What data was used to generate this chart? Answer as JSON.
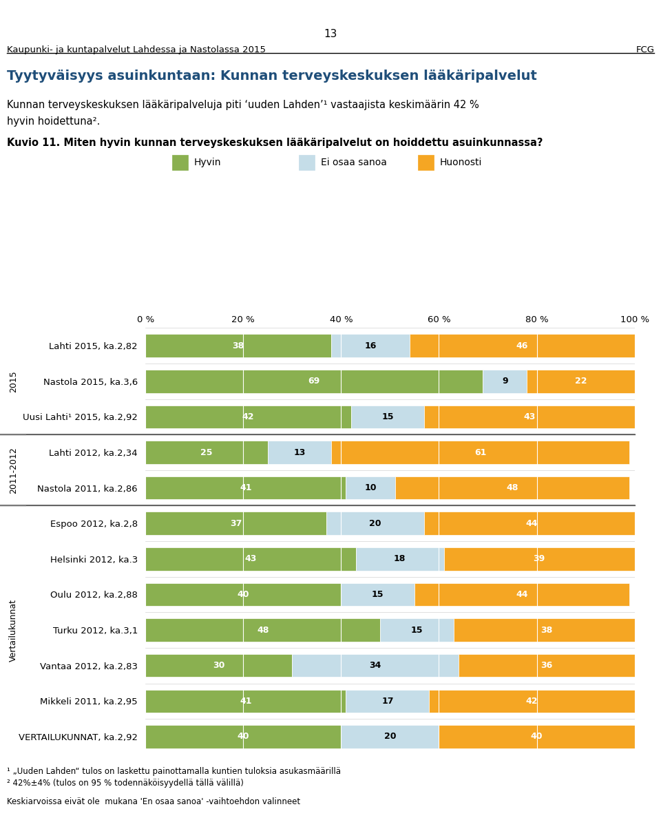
{
  "page_number": "13",
  "header_left": "Kaupunki- ja kuntapalvelut Lahdessa ja Nastolassa 2015",
  "header_right": "FCG",
  "title": "Tyytyväisyys asuinkuntaan: Kunnan terveyskeskuksen lääkäripalvelut",
  "subtitle_line1": "Kunnan terveyskeskuksen lääkäripalveluja piti ‘uuden Lahden’¹ vastaajista keskimäärin 42 %",
  "subtitle_line2": "hyvin hoidettuna².",
  "kuvio_label": "Kuvio 11. Miten hyvin kunnan terveyskeskuksen lääkäripalvelut on hoiddettu asuinkunnassa?",
  "legend_items": [
    "Hyvin",
    "Ei osaa sanoa",
    "Huonosti"
  ],
  "legend_colors": [
    "#8ab050",
    "#c5dde8",
    "#f5a623"
  ],
  "bar_color_hyvin": "#8ab050",
  "bar_color_ei_osaa": "#c5dde8",
  "bar_color_huonosti": "#f5a623",
  "categories": [
    "Lahti 2015, ka.2,82",
    "Nastola 2015, ka.3,6",
    "Uusi Lahti¹ 2015, ka.2,92",
    "Lahti 2012, ka.2,34",
    "Nastola 2011, ka.2,86",
    "Espoo 2012, ka.2,8",
    "Helsinki 2012, ka.3",
    "Oulu 2012, ka.2,88",
    "Turku 2012, ka.3,1",
    "Vantaa 2012, ka.2,83",
    "Mikkeli 2011, ka.2,95",
    "VERTAILUKUNNAT, ka.2,92"
  ],
  "hyvin": [
    38,
    69,
    42,
    25,
    41,
    37,
    43,
    40,
    48,
    30,
    41,
    40
  ],
  "ei_osaa": [
    16,
    9,
    15,
    13,
    10,
    20,
    18,
    15,
    15,
    34,
    17,
    20
  ],
  "huonosti": [
    46,
    22,
    43,
    61,
    48,
    44,
    39,
    44,
    38,
    36,
    42,
    40
  ],
  "group_labels": [
    "2015",
    "2011-2012",
    "Vertailukunnat"
  ],
  "group_ranges": [
    [
      0,
      2
    ],
    [
      3,
      4
    ],
    [
      5,
      11
    ]
  ],
  "footnote1": "¹ „Uuden Lahden“ tulos on laskettu painottamalla kuntien tuloksia asukasmäärillä",
  "footnote2": "² 42%±4% (tulos on 95 % todennäköisyydellä tällä välillä)",
  "footnote3": "Keskiarvoissa eivät ole  mukana 'En osaa sanoa' -vaihtoehdon valinneet",
  "xlim": [
    0,
    100
  ],
  "xtick_labels": [
    "0 %",
    "20 %",
    "40 %",
    "60 %",
    "80 %",
    "100 %"
  ],
  "xtick_values": [
    0,
    20,
    40,
    60,
    80,
    100
  ]
}
